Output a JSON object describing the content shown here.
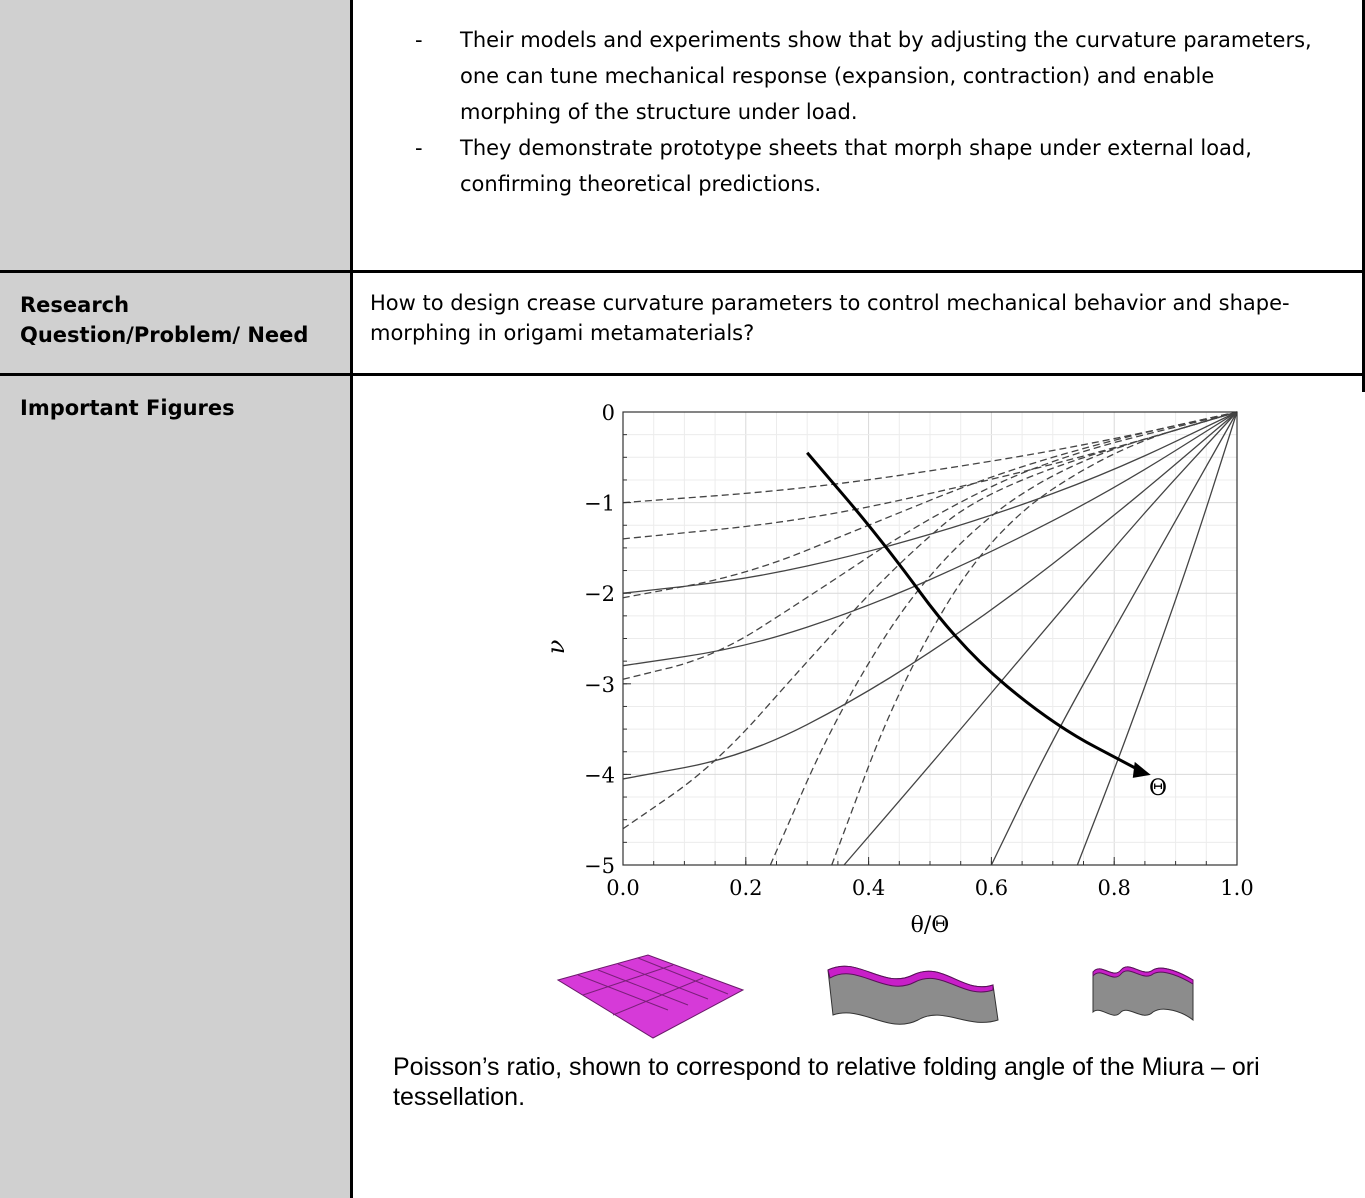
{
  "row1": {
    "bullets": [
      "Their models and experiments show that by adjusting the curvature parameters, one can tune mechanical response (expansion, contraction) and enable morphing of the structure under load.",
      "They demonstrate prototype sheets that morph shape under external load, confirming theoretical predictions."
    ],
    "bullet_marker": "-"
  },
  "row2": {
    "label_line1": "Research",
    "label_line2": "Question/Problem/ Need",
    "text": "How to design crease curvature parameters to control mechanical behavior and shape-morphing in origami metamaterials?"
  },
  "row3": {
    "label": "Important Figures",
    "caption": "Poisson’s ratio, shown to correspond to relative folding angle of the Miura – ori tessellation."
  },
  "chart_data": {
    "type": "line",
    "xlabel": "θ/Θ",
    "ylabel": "ν",
    "xlim": [
      0,
      1
    ],
    "ylim": [
      -5,
      0
    ],
    "xticks": [
      "0.0",
      "0.2",
      "0.4",
      "0.6",
      "0.8",
      "1.0"
    ],
    "yticks": [
      "0",
      "−1",
      "−2",
      "−3",
      "−4",
      "−5"
    ],
    "grid": true,
    "annotation": "Θ",
    "solid_series": [
      {
        "values": [
          [
            0,
            -2.0
          ],
          [
            0.2,
            -1.85
          ],
          [
            0.4,
            -1.55
          ],
          [
            0.6,
            -1.15
          ],
          [
            0.8,
            -0.65
          ],
          [
            1.0,
            0
          ]
        ]
      },
      {
        "values": [
          [
            0,
            -2.8
          ],
          [
            0.2,
            -2.6
          ],
          [
            0.4,
            -2.15
          ],
          [
            0.6,
            -1.55
          ],
          [
            0.8,
            -0.85
          ],
          [
            1.0,
            0
          ]
        ]
      },
      {
        "values": [
          [
            0,
            -4.05
          ],
          [
            0.2,
            -3.8
          ],
          [
            0.4,
            -3.1
          ],
          [
            0.6,
            -2.2
          ],
          [
            0.8,
            -1.15
          ],
          [
            1.0,
            0
          ]
        ]
      },
      {
        "values": [
          [
            0.36,
            -5.0
          ],
          [
            0.5,
            -3.9
          ],
          [
            0.7,
            -2.3
          ],
          [
            0.85,
            -1.1
          ],
          [
            1.0,
            0
          ]
        ]
      },
      {
        "values": [
          [
            0.6,
            -5.0
          ],
          [
            0.7,
            -3.6
          ],
          [
            0.85,
            -1.8
          ],
          [
            1.0,
            0
          ]
        ]
      },
      {
        "values": [
          [
            0.74,
            -5.0
          ],
          [
            0.82,
            -3.6
          ],
          [
            0.92,
            -1.7
          ],
          [
            1.0,
            0
          ]
        ]
      }
    ],
    "dashed_series": [
      {
        "values": [
          [
            0,
            -1.0
          ],
          [
            0.3,
            -0.85
          ],
          [
            0.6,
            -0.55
          ],
          [
            0.8,
            -0.3
          ],
          [
            1.0,
            0
          ]
        ]
      },
      {
        "values": [
          [
            0,
            -1.4
          ],
          [
            0.3,
            -1.2
          ],
          [
            0.6,
            -0.75
          ],
          [
            0.8,
            -0.4
          ],
          [
            1.0,
            0
          ]
        ]
      },
      {
        "values": [
          [
            0,
            -2.05
          ],
          [
            0.2,
            -1.8
          ],
          [
            0.4,
            -1.25
          ],
          [
            0.6,
            -0.7
          ],
          [
            0.8,
            -0.3
          ],
          [
            1.0,
            0
          ]
        ]
      },
      {
        "values": [
          [
            0,
            -2.95
          ],
          [
            0.15,
            -2.7
          ],
          [
            0.3,
            -2.05
          ],
          [
            0.5,
            -1.15
          ],
          [
            0.7,
            -0.5
          ],
          [
            1.0,
            0
          ]
        ]
      },
      {
        "values": [
          [
            0,
            -4.6
          ],
          [
            0.15,
            -3.9
          ],
          [
            0.3,
            -2.75
          ],
          [
            0.45,
            -1.65
          ],
          [
            0.6,
            -0.8
          ],
          [
            1.0,
            0
          ]
        ]
      },
      {
        "values": [
          [
            0.24,
            -5.0
          ],
          [
            0.35,
            -3.3
          ],
          [
            0.5,
            -1.7
          ],
          [
            0.7,
            -0.6
          ],
          [
            1.0,
            0
          ]
        ]
      },
      {
        "values": [
          [
            0.34,
            -5.0
          ],
          [
            0.45,
            -3.0
          ],
          [
            0.6,
            -1.3
          ],
          [
            0.8,
            -0.4
          ],
          [
            1.0,
            0
          ]
        ]
      }
    ],
    "arrow": [
      [
        0.3,
        -0.45
      ],
      [
        0.42,
        -1.4
      ],
      [
        0.55,
        -2.6
      ],
      [
        0.7,
        -3.45
      ],
      [
        0.84,
        -3.95
      ]
    ]
  }
}
